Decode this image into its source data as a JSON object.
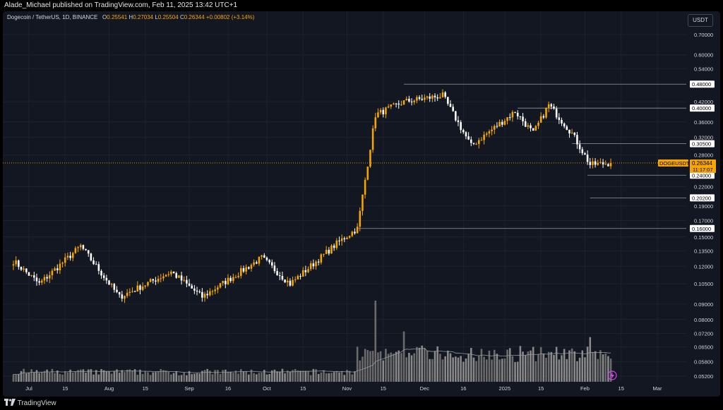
{
  "header": {
    "publisher_line": "Alade_Michael published on TradingView.com, Feb 11, 2025 13:42 UTC+1"
  },
  "legend": {
    "symbol": "Dogecoin / TetherUS, 1D, BINANCE",
    "open_label": "O",
    "open": "0.25541",
    "high_label": "H",
    "high": "0.27034",
    "low_label": "L",
    "low": "0.25504",
    "close_label": "C",
    "close": "0.26344",
    "change": "+0.00802 (+3.14%)"
  },
  "unit_badge": "USDT",
  "price_badge": {
    "symbol": "DOGEUSDT",
    "price": "0.26344",
    "countdown": "11:17:07"
  },
  "footer": {
    "brand": "TradingView"
  },
  "colors": {
    "background": "#131722",
    "up": "#f7a600",
    "down": "#ffffff",
    "grid": "#1e222d",
    "level_line": "#9598a1",
    "text": "#d1d4dc"
  },
  "chart_data": {
    "type": "candlestick",
    "scale": "log",
    "y_ticks": [
      "0.70000",
      "0.60000",
      "0.54000",
      "0.42000",
      "0.36000",
      "0.32000",
      "0.28000",
      "0.22000",
      "0.19000",
      "0.17000",
      "0.15000",
      "0.13500",
      "0.12000",
      "0.10500",
      "0.09000",
      "0.08000",
      "0.07200",
      "0.06500",
      "0.05800",
      "0.05200"
    ],
    "x_ticks": [
      "Jul",
      "15",
      "Aug",
      "15",
      "Sep",
      "16",
      "Oct",
      "15",
      "Nov",
      "15",
      "Dec",
      "16",
      "2025",
      "15",
      "Feb",
      "15",
      "Mar"
    ],
    "levels": [
      {
        "price": 0.48,
        "label": "0.48000"
      },
      {
        "price": 0.4,
        "label": "0.40000"
      },
      {
        "price": 0.305,
        "label": "0.30500"
      },
      {
        "price": 0.24,
        "label": "0.24000"
      },
      {
        "price": 0.202,
        "label": "0.20200"
      },
      {
        "price": 0.16,
        "label": "0.16000"
      }
    ],
    "current_price": 0.26344,
    "key_points": [
      {
        "date": "2024-06-25",
        "close": 0.125
      },
      {
        "date": "2024-07-05",
        "close": 0.105
      },
      {
        "date": "2024-07-21",
        "close": 0.14
      },
      {
        "date": "2024-08-05",
        "close": 0.095
      },
      {
        "date": "2024-08-25",
        "close": 0.115
      },
      {
        "date": "2024-09-06",
        "close": 0.095
      },
      {
        "date": "2024-09-29",
        "close": 0.128
      },
      {
        "date": "2024-10-10",
        "close": 0.105
      },
      {
        "date": "2024-10-29",
        "close": 0.145
      },
      {
        "date": "2024-11-05",
        "close": 0.16
      },
      {
        "date": "2024-11-12",
        "close": 0.38
      },
      {
        "date": "2024-11-23",
        "close": 0.42
      },
      {
        "date": "2024-12-08",
        "close": 0.44
      },
      {
        "date": "2024-12-19",
        "close": 0.3
      },
      {
        "date": "2025-01-05",
        "close": 0.39
      },
      {
        "date": "2025-01-12",
        "close": 0.33
      },
      {
        "date": "2025-01-18",
        "close": 0.41
      },
      {
        "date": "2025-01-27",
        "close": 0.33
      },
      {
        "date": "2025-02-03",
        "close": 0.26
      },
      {
        "date": "2025-02-11",
        "close": 0.263
      }
    ],
    "volume_spikes": [
      {
        "date": "2024-11-12",
        "relative": 1.0
      },
      {
        "date": "2024-11-23",
        "relative": 0.62
      },
      {
        "date": "2025-02-03",
        "relative": 0.55
      }
    ]
  }
}
